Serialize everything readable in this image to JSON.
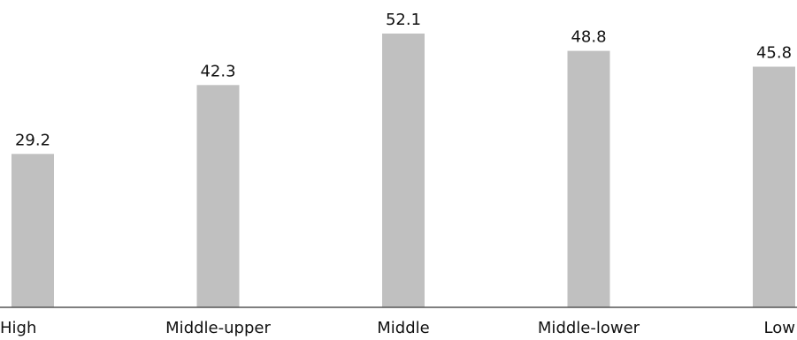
{
  "chart_data": {
    "type": "bar",
    "categories": [
      "High",
      "Middle-upper",
      "Middle",
      "Middle-lower",
      "Low"
    ],
    "values": [
      29.2,
      42.3,
      52.1,
      48.8,
      45.8
    ],
    "ylim": [
      0,
      52.1
    ],
    "grid": false,
    "colors": {
      "bar": "#c0c0c0",
      "axis": "#555555",
      "text": "#111111"
    }
  }
}
